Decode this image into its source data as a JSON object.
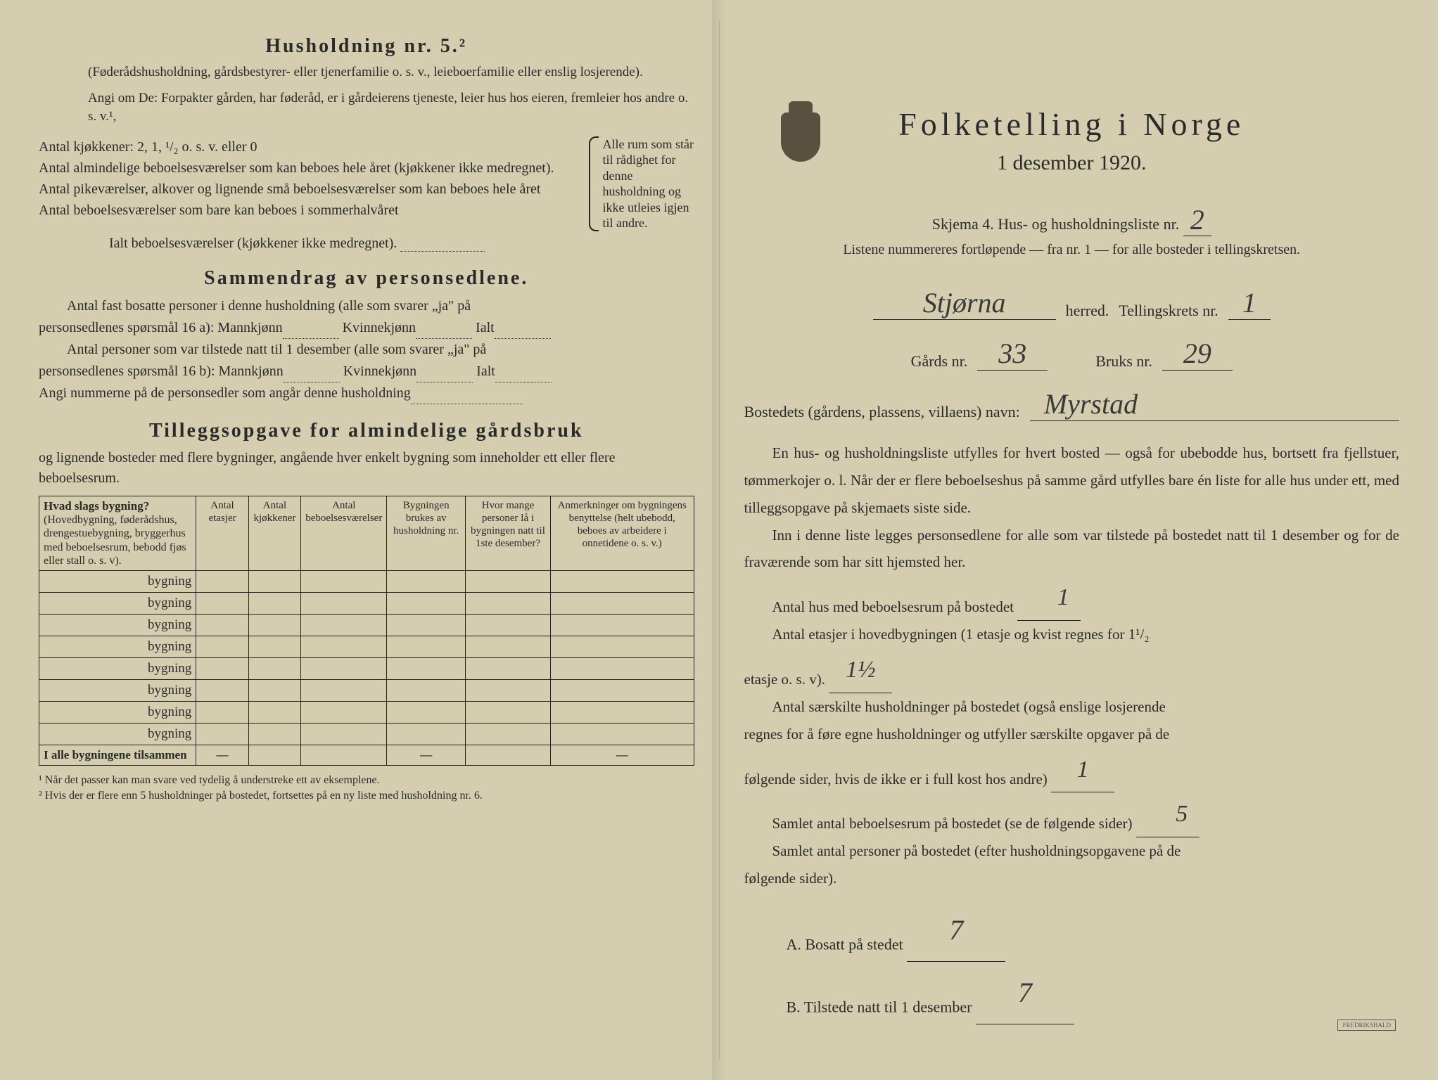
{
  "left": {
    "husholdning_title": "Husholdning nr. 5.²",
    "husholdning_sub1": "(Føderådshusholdning, gårdsbestyrer- eller tjenerfamilie o. s. v., leieboerfamilie eller enslig losjerende).",
    "husholdning_sub2": "Angi om De: Forpakter gården, har føderåd, er i gårdeierens tjeneste, leier hus hos eieren, fremleier hos andre o. s. v.¹,",
    "antal_rows": [
      "Antal kjøkkener: 2, 1, ¹/₂ o. s. v. eller 0",
      "Antal almindelige beboelsesværelser som kan beboes hele året (kjøkkener ikke medregnet).",
      "Antal pikeværelser, alkover og lignende små beboelsesværelser som kan beboes hele året",
      "Antal beboelsesværelser som bare kan beboes i sommerhalvåret"
    ],
    "brace_text": "Alle rum som står til rådighet for denne husholdning og ikke utleies igjen til andre.",
    "ialt_label": "Ialt beboelsesværelser (kjøkkener ikke medregnet).",
    "sammendrag_title": "Sammendrag av personsedlene.",
    "sammendrag_line1": "Antal fast bosatte personer i denne husholdning (alle som svarer „ja\" på personsedlenes spørsmål 16 a): Mannkjønn______ Kvinnekjønn______ Ialt______",
    "sammendrag_p1a": "Antal fast bosatte personer i denne husholdning (alle som svarer „ja\" på",
    "sammendrag_p1b": "personsedlenes spørsmål 16 a): Mannkjønn",
    "sammendrag_kvinnekjonn": "Kvinnekjønn",
    "sammendrag_ialt": "Ialt",
    "sammendrag_p2a": "Antal personer som var tilstede natt til 1 desember (alle som svarer „ja\" på",
    "sammendrag_p2b": "personsedlenes spørsmål 16 b): Mannkjønn",
    "sammendrag_angi": "Angi nummerne på de personsedler som angår denne husholdning",
    "tillegg_title": "Tilleggsopgave for almindelige gårdsbruk",
    "tillegg_intro": "og lignende bosteder med flere bygninger, angående hver enkelt bygning som inneholder ett eller flere beboelsesrum.",
    "table_headers": {
      "col1_bold": "Hvad slags bygning?",
      "col1_rest": "(Hovedbygning, føderådshus, drengestuebygning, bryggerhus med beboelsesrum, bebodd fjøs eller stall o. s. v).",
      "col2": "Antal etasjer",
      "col3": "Antal kjøkkener",
      "col4": "Antal beboelsesværelser",
      "col5": "Bygningen brukes av husholdning nr.",
      "col6": "Hvor mange personer lå i bygningen natt til 1ste desember?",
      "col7": "Anmerkninger om bygningens benyttelse (helt ubebodd, beboes av arbeidere i onnetidene o. s. v.)"
    },
    "bygning_label": "bygning",
    "bygning_row_count": 8,
    "sum_row_label": "I alle bygningene tilsammen",
    "footnote1": "¹ Når det passer kan man svare ved tydelig å understreke ett av eksemplene.",
    "footnote2": "² Hvis der er flere enn 5 husholdninger på bostedet, fortsettes på en ny liste med husholdning nr. 6."
  },
  "right": {
    "main_title": "Folketelling i Norge",
    "date": "1 desember 1920.",
    "skjema_text": "Skjema 4.   Hus- og husholdningsliste nr.",
    "skjema_nr": "2",
    "liste_text": "Listene nummereres fortløpende — fra nr. 1 — for alle bosteder i tellingskretsen.",
    "herred_value": "Stjørna",
    "herred_label": "herred.",
    "tellingskrets_label": "Tellingskrets nr.",
    "tellingskrets_nr": "1",
    "gards_label": "Gårds nr.",
    "gards_nr": "33",
    "bruks_label": "Bruks nr.",
    "bruks_nr": "29",
    "bosted_label": "Bostedets (gårdens, plassens, villaens) navn:",
    "bosted_value": "Myrstad",
    "para1": "En hus- og husholdningsliste utfylles for hvert bosted — også for ubebodde hus, bortsett fra fjellstuer, tømmerkojer o. l. Når der er flere beboelseshus på samme gård utfylles bare én liste for alle hus under ett, med tilleggsopgave på skjemaets siste side.",
    "para2": "Inn i denne liste legges personsedlene for alle som var tilstede på bostedet natt til 1 desember og for de fraværende som har sitt hjemsted her.",
    "q_hus": "Antal hus med beboelsesrum på bostedet",
    "a_hus": "1",
    "q_etasjer_a": "Antal etasjer i hovedbygningen (1 etasje og kvist regnes for 1¹/₂",
    "q_etasjer_b": "etasje o. s. v).",
    "a_etasjer": "1½",
    "q_hushold_a": "Antal særskilte husholdninger på bostedet (også enslige losjerende",
    "q_hushold_b": "regnes for å føre egne husholdninger og utfyller særskilte opgaver på de",
    "q_hushold_c": "følgende sider, hvis de ikke er i full kost hos andre)",
    "a_hushold": "1",
    "q_bebo": "Samlet antal beboelsesrum på bostedet (se de følgende sider)",
    "a_bebo": "5",
    "q_pers_a": "Samlet antal personer på bostedet (efter husholdningsopgavene på de",
    "q_pers_b": "følgende sider).",
    "ab_a_label": "A.  Bosatt på stedet",
    "ab_a_val": "7",
    "ab_b_label": "B.  Tilstede natt til 1 desember",
    "ab_b_val": "7"
  },
  "colors": {
    "paper": "#d4cdb0",
    "ink": "#2a2a2a",
    "hand": "#3a3a3a"
  }
}
